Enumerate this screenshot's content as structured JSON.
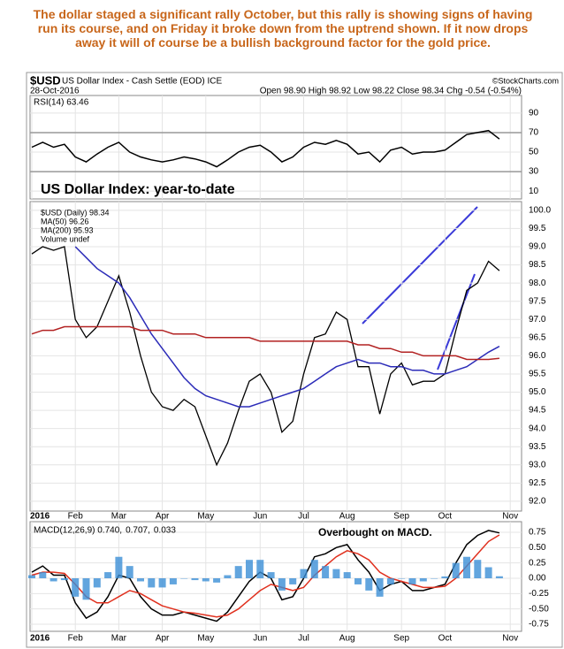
{
  "note": "The dollar staged a significant rally October, but this rally is showing signs of having run its course, and on Friday it broke down from the uptrend shown. If it now drops away it will of course be a bullish background factor for the gold price.",
  "chart_header": {
    "symbol": "$USD",
    "name": "US Dollar Index - Cash Settle (EOD) ICE",
    "source": "©StockCharts.com",
    "date": "28-Oct-2016",
    "quote": "Open 98.90 High 98.92 Low 98.22 Close 98.34 Chg -0.54 (-0.54%)"
  },
  "chart_data": [
    {
      "type": "line",
      "title": "RSI(14) 63.46",
      "ylim": [
        2,
        108
      ],
      "yticks": [
        90,
        70,
        50,
        30,
        10
      ],
      "hlines": [
        70,
        30
      ],
      "grid": true,
      "series": [
        {
          "name": "RSI(14)",
          "color": "#000000",
          "values": [
            55,
            60,
            55,
            58,
            45,
            40,
            48,
            55,
            60,
            50,
            45,
            42,
            40,
            42,
            45,
            43,
            40,
            35,
            42,
            50,
            55,
            57,
            50,
            40,
            45,
            55,
            60,
            58,
            62,
            58,
            48,
            50,
            40,
            52,
            55,
            48,
            50,
            50,
            52,
            60,
            68,
            70,
            72,
            63.46,
            null
          ]
        }
      ]
    },
    {
      "type": "line",
      "annotation": "US Dollar Index: year-to-date",
      "legend_extra": "Volume undef",
      "ylim": [
        91.73,
        100.24
      ],
      "grid": true,
      "categories": [
        "2016",
        null,
        null,
        null,
        "Feb",
        null,
        null,
        null,
        "Mar",
        null,
        null,
        null,
        "Apr",
        null,
        null,
        null,
        "May",
        null,
        null,
        null,
        null,
        "Jun",
        null,
        null,
        null,
        "Jul",
        null,
        null,
        null,
        "Aug",
        null,
        null,
        null,
        null,
        "Sep",
        null,
        null,
        null,
        "Oct",
        null,
        null,
        null,
        null,
        null,
        "Nov"
      ],
      "yticks": [
        {
          "value": 100,
          "label": "100.0"
        },
        99.5,
        {
          "value": 99,
          "label": "99.0"
        },
        98.5,
        {
          "value": 98,
          "label": "98.0"
        },
        97.5,
        {
          "value": 97,
          "label": "97.0"
        },
        96.5,
        {
          "value": 96,
          "label": "96.0"
        },
        95.5,
        {
          "value": 95,
          "label": "95.0"
        },
        94.5,
        {
          "value": 94,
          "label": "94.0"
        },
        93.5,
        {
          "value": 93,
          "label": "93.0"
        },
        92.5,
        {
          "value": 92,
          "label": "92.0"
        }
      ],
      "series": [
        {
          "name": "$USD (Daily) 98.34",
          "color": "#000000",
          "values": [
            98.8,
            99.0,
            98.9,
            99.0,
            97.0,
            96.5,
            96.8,
            97.5,
            98.2,
            97.2,
            96.0,
            95.0,
            94.6,
            94.5,
            94.8,
            94.6,
            93.8,
            93.0,
            93.6,
            94.5,
            95.3,
            95.5,
            95.0,
            93.9,
            94.2,
            95.5,
            96.5,
            96.6,
            97.2,
            97.0,
            95.7,
            95.7,
            94.4,
            95.5,
            95.8,
            95.2,
            95.3,
            95.3,
            95.5,
            96.7,
            97.8,
            98.0,
            98.6,
            98.34,
            null
          ]
        },
        {
          "name": "MA(50) 96.26",
          "color": "#2b2bb8",
          "values": [
            null,
            null,
            null,
            null,
            99.0,
            98.7,
            98.4,
            98.2,
            98.0,
            97.6,
            97.1,
            96.6,
            96.2,
            95.8,
            95.4,
            95.1,
            94.9,
            94.8,
            94.7,
            94.6,
            94.6,
            94.7,
            94.8,
            94.9,
            95.0,
            95.1,
            95.3,
            95.5,
            95.7,
            95.8,
            95.9,
            95.8,
            95.8,
            95.7,
            95.7,
            95.6,
            95.6,
            95.5,
            95.5,
            95.6,
            95.7,
            95.9,
            96.1,
            96.26,
            null
          ]
        },
        {
          "name": "MA(200) 95.93",
          "color": "#b22222",
          "values": [
            96.6,
            96.7,
            96.7,
            96.8,
            96.8,
            96.8,
            96.8,
            96.8,
            96.8,
            96.8,
            96.7,
            96.7,
            96.7,
            96.6,
            96.6,
            96.6,
            96.5,
            96.5,
            96.5,
            96.5,
            96.5,
            96.4,
            96.4,
            96.4,
            96.4,
            96.4,
            96.4,
            96.4,
            96.4,
            96.4,
            96.3,
            96.3,
            96.2,
            96.2,
            96.1,
            96.1,
            96.0,
            96.0,
            96.0,
            96.0,
            95.9,
            95.9,
            95.9,
            95.93,
            null
          ]
        }
      ]
    },
    {
      "type": "line",
      "annotation": "Overbought on MACD.",
      "ylim": [
        -0.865,
        0.923
      ],
      "grid": true,
      "yticks": [
        0.75,
        {
          "value": 0.5,
          "label": "0.50"
        },
        0.25,
        {
          "value": 0,
          "label": "0.00"
        },
        -0.25,
        {
          "value": -0.5,
          "label": "-0.50"
        },
        -0.75
      ],
      "series": [
        {
          "name": "MACD(12,26,9) 0.740,",
          "color": "#000000",
          "values": [
            0.1,
            0.2,
            0.05,
            0.05,
            -0.4,
            -0.65,
            -0.55,
            -0.3,
            0.05,
            0.0,
            -0.3,
            -0.5,
            -0.6,
            -0.6,
            -0.55,
            -0.6,
            -0.65,
            -0.7,
            -0.55,
            -0.3,
            -0.05,
            0.1,
            0.0,
            -0.35,
            -0.3,
            0.0,
            0.35,
            0.4,
            0.5,
            0.55,
            0.3,
            0.1,
            -0.2,
            -0.1,
            -0.05,
            -0.2,
            -0.2,
            -0.15,
            -0.1,
            0.25,
            0.55,
            0.7,
            0.78,
            0.74,
            null
          ]
        },
        {
          "name": "0.707,",
          "color": "#e0301e",
          "values": [
            0.05,
            0.1,
            0.1,
            0.08,
            -0.1,
            -0.3,
            -0.4,
            -0.4,
            -0.3,
            -0.2,
            -0.25,
            -0.35,
            -0.45,
            -0.5,
            -0.55,
            -0.57,
            -0.6,
            -0.63,
            -0.6,
            -0.5,
            -0.35,
            -0.2,
            -0.1,
            -0.15,
            -0.2,
            -0.15,
            0.05,
            0.2,
            0.35,
            0.45,
            0.4,
            0.3,
            0.1,
            0.0,
            -0.05,
            -0.1,
            -0.15,
            -0.15,
            -0.13,
            0.0,
            0.2,
            0.4,
            0.6,
            0.707,
            null
          ]
        },
        {
          "name": "0.033",
          "color": "#3b8fd6",
          "type": "histogram",
          "values": [
            0.05,
            0.1,
            -0.05,
            -0.03,
            -0.3,
            -0.35,
            -0.15,
            0.1,
            0.35,
            0.2,
            -0.05,
            -0.15,
            -0.15,
            -0.1,
            0.0,
            -0.03,
            -0.05,
            -0.07,
            0.05,
            0.2,
            0.3,
            0.3,
            0.1,
            -0.2,
            -0.1,
            0.15,
            0.3,
            0.2,
            0.15,
            0.1,
            -0.1,
            -0.2,
            -0.3,
            -0.1,
            0.0,
            -0.1,
            -0.05,
            0.0,
            0.03,
            0.25,
            0.35,
            0.3,
            0.18,
            0.033,
            null
          ]
        }
      ]
    }
  ]
}
